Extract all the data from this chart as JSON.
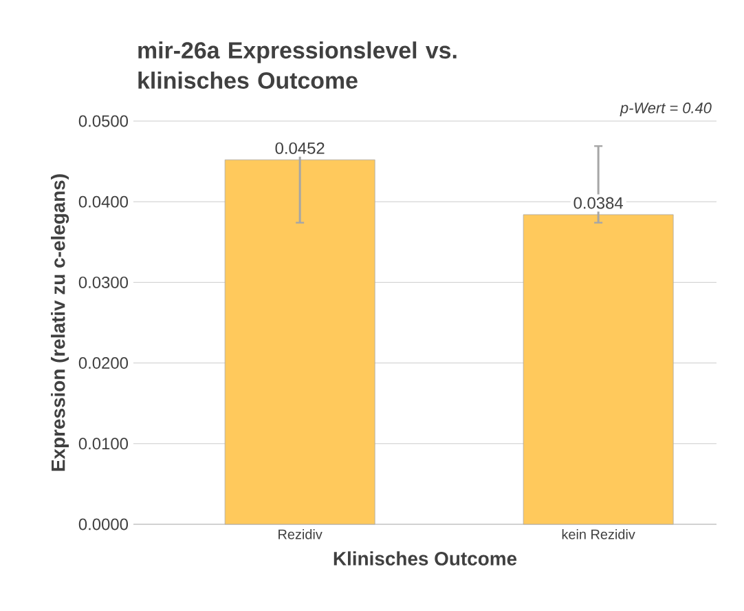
{
  "chart_data": {
    "type": "bar",
    "title": "mir-26a Expressionslevel vs. klinisches Outcome",
    "xlabel": "Klinisches Outcome",
    "ylabel": "Expression (relativ zu c-elegans)",
    "categories": [
      "Rezidiv",
      "kein Rezidiv"
    ],
    "values": [
      0.0452,
      0.0384
    ],
    "color": "#ffc95c",
    "errors": [
      [
        0.0374,
        0.0462
      ],
      [
        0.0374,
        0.0469
      ]
    ],
    "value_labels": [
      "0.0452",
      "0.0384"
    ],
    "annotations": [
      "p-Wert = 0.40"
    ],
    "ylim": [
      0,
      0.05
    ],
    "yticks": [
      {
        "value": 0,
        "label": "0.0000"
      },
      {
        "value": 0.01,
        "label": "0.0100"
      },
      {
        "value": 0.02,
        "label": "0.0200"
      },
      {
        "value": 0.03,
        "label": "0.0300"
      },
      {
        "value": 0.04,
        "label": "0.0400"
      },
      {
        "value": 0.05,
        "label": "0.0500"
      }
    ],
    "grid": "y"
  }
}
